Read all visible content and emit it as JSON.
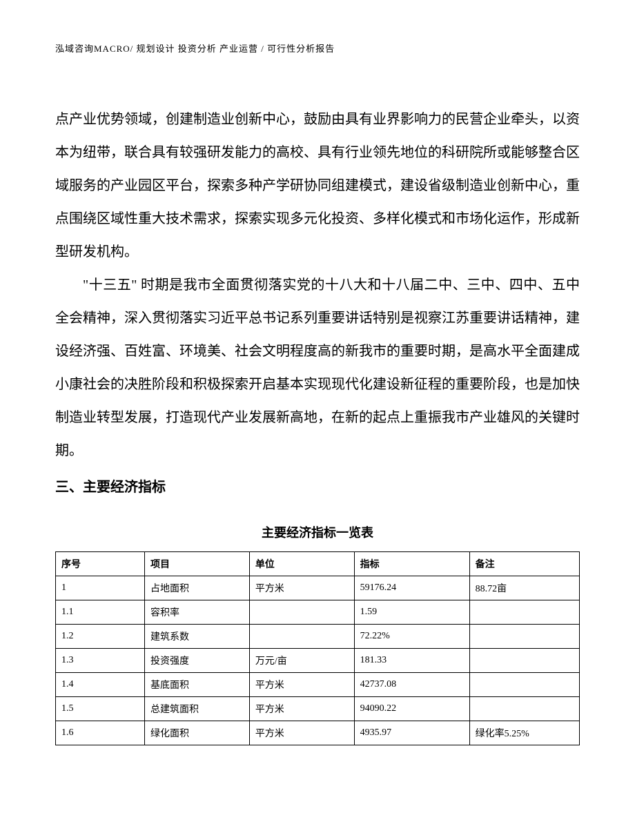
{
  "header": {
    "text": "泓域咨询MACRO/ 规划设计  投资分析  产业运营 / 可行性分析报告"
  },
  "body": {
    "paragraph1": "点产业优势领域，创建制造业创新中心，鼓励由具有业界影响力的民营企业牵头，以资本为纽带，联合具有较强研发能力的高校、具有行业领先地位的科研院所或能够整合区域服务的产业园区平台，探索多种产学研协同组建模式，建设省级制造业创新中心，重点围绕区域性重大技术需求，探索实现多元化投资、多样化模式和市场化运作，形成新型研发机构。",
    "paragraph2": "\"十三五\" 时期是我市全面贯彻落实党的十八大和十八届二中、三中、四中、五中全会精神，深入贯彻落实习近平总书记系列重要讲话特别是视察江苏重要讲话精神，建设经济强、百姓富、环境美、社会文明程度高的新我市的重要时期，是高水平全面建成小康社会的决胜阶段和积极探索开启基本实现现代化建设新征程的重要阶段，也是加快制造业转型发展，打造现代产业发展新高地，在新的起点上重振我市产业雄风的关键时期。"
  },
  "section": {
    "heading": "三、主要经济指标"
  },
  "table": {
    "title": "主要经济指标一览表",
    "columns": [
      "序号",
      "项目",
      "单位",
      "指标",
      "备注"
    ],
    "column_widths": [
      "17%",
      "20%",
      "20%",
      "22%",
      "21%"
    ],
    "rows": [
      [
        "1",
        "占地面积",
        "平方米",
        "59176.24",
        "88.72亩"
      ],
      [
        "1.1",
        "容积率",
        "",
        "1.59",
        ""
      ],
      [
        "1.2",
        "建筑系数",
        "",
        "72.22%",
        ""
      ],
      [
        "1.3",
        "投资强度",
        "万元/亩",
        "181.33",
        ""
      ],
      [
        "1.4",
        "基底面积",
        "平方米",
        "42737.08",
        ""
      ],
      [
        "1.5",
        "总建筑面积",
        "平方米",
        "94090.22",
        ""
      ],
      [
        "1.6",
        "绿化面积",
        "平方米",
        "4935.97",
        "绿化率5.25%"
      ]
    ],
    "border_color": "#000000",
    "font_size": 14
  },
  "style": {
    "body_font_size": 20,
    "body_line_height": 2.4,
    "heading_font_size": 20,
    "header_font_size": 13,
    "background_color": "#ffffff",
    "text_color": "#000000"
  }
}
